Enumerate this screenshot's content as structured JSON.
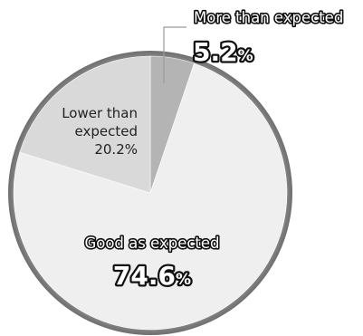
{
  "chart_data": {
    "type": "pie",
    "slices": [
      {
        "label": "More than expected",
        "value": 5.2,
        "value_text": "5.2",
        "unit": "%",
        "color": "#b4b4b4"
      },
      {
        "label": "Good as expected",
        "value": 74.6,
        "value_text": "74.6",
        "unit": "%",
        "color": "#efefef"
      },
      {
        "label_lines": [
          "Lower than",
          "expected"
        ],
        "value": 20.2,
        "value_text": "20.2%",
        "color": "#d9d9d9"
      }
    ],
    "rim_color": "#8c8c8c"
  }
}
